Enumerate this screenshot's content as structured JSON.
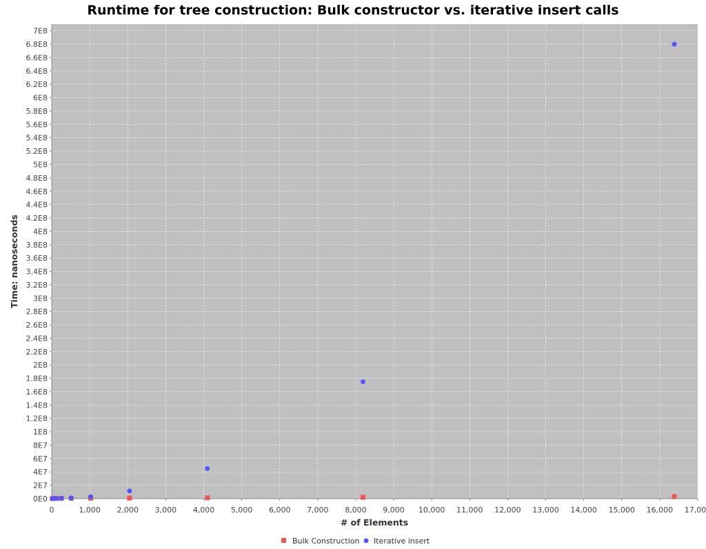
{
  "chart_data": {
    "type": "scatter",
    "title": "Runtime for tree construction: Bulk constructor vs. iterative insert calls",
    "xlabel": "# of Elements",
    "ylabel": "Time: nanoseconds",
    "xlim": [
      0,
      17000
    ],
    "ylim": [
      0,
      710000000
    ],
    "x_ticks": [
      0,
      1000,
      2000,
      3000,
      4000,
      5000,
      6000,
      7000,
      8000,
      9000,
      10000,
      11000,
      12000,
      13000,
      14000,
      15000,
      16000,
      17000
    ],
    "x_tick_labels": [
      "0",
      "1,000",
      "2,000",
      "3,000",
      "4,000",
      "5,000",
      "6,000",
      "7,000",
      "8,000",
      "9,000",
      "10,000",
      "11,000",
      "12,000",
      "13,000",
      "14,000",
      "15,000",
      "16,000",
      "17,000"
    ],
    "y_ticks": [
      0,
      20000000,
      40000000,
      60000000,
      80000000,
      100000000,
      120000000,
      140000000,
      160000000,
      180000000,
      200000000,
      220000000,
      240000000,
      260000000,
      280000000,
      300000000,
      320000000,
      340000000,
      360000000,
      380000000,
      400000000,
      420000000,
      440000000,
      460000000,
      480000000,
      500000000,
      520000000,
      540000000,
      560000000,
      580000000,
      600000000,
      620000000,
      640000000,
      660000000,
      680000000,
      700000000
    ],
    "y_tick_labels": [
      "0E0",
      "2E7",
      "4E7",
      "6E7",
      "8E7",
      "1E8",
      "1.2E8",
      "1.4E8",
      "1.6E8",
      "1.8E8",
      "2E8",
      "2.2E8",
      "2.4E8",
      "2.6E8",
      "2.8E8",
      "3E8",
      "3.2E8",
      "3.4E8",
      "3.6E8",
      "3.8E8",
      "4E8",
      "4.2E8",
      "4.4E8",
      "4.6E8",
      "4.8E8",
      "5E8",
      "5.2E8",
      "5.4E8",
      "5.6E8",
      "5.8E8",
      "6E8",
      "6.2E8",
      "6.4E8",
      "6.6E8",
      "6.8E8",
      "7E8"
    ],
    "grid": true,
    "legend_position": "bottom-center",
    "colors": {
      "plot_background": "#c0c0c0",
      "gridline": "#ffffff",
      "bulk": "#f05555",
      "iterative": "#5555ff"
    },
    "series": [
      {
        "name": "Bulk Construction",
        "marker": "square",
        "points": [
          {
            "x": 16,
            "y": 100000
          },
          {
            "x": 32,
            "y": 150000
          },
          {
            "x": 64,
            "y": 200000
          },
          {
            "x": 128,
            "y": 300000
          },
          {
            "x": 256,
            "y": 400000
          },
          {
            "x": 512,
            "y": 500000
          },
          {
            "x": 1024,
            "y": 700000
          },
          {
            "x": 2048,
            "y": 1000000
          },
          {
            "x": 4096,
            "y": 1300000
          },
          {
            "x": 8192,
            "y": 2000000
          },
          {
            "x": 16384,
            "y": 3000000
          }
        ]
      },
      {
        "name": "Iterative insert",
        "marker": "circle",
        "points": [
          {
            "x": 16,
            "y": 50000
          },
          {
            "x": 32,
            "y": 100000
          },
          {
            "x": 64,
            "y": 200000
          },
          {
            "x": 128,
            "y": 300000
          },
          {
            "x": 256,
            "y": 600000
          },
          {
            "x": 512,
            "y": 1000000
          },
          {
            "x": 1024,
            "y": 3000000
          },
          {
            "x": 2048,
            "y": 11500000
          },
          {
            "x": 4096,
            "y": 45000000
          },
          {
            "x": 8192,
            "y": 175000000
          },
          {
            "x": 16384,
            "y": 680000000
          }
        ]
      }
    ]
  }
}
